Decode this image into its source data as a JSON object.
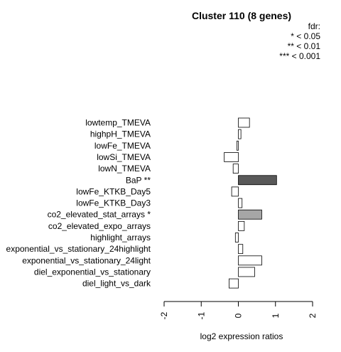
{
  "chart_data": {
    "type": "bar",
    "orientation": "horizontal",
    "title": "Cluster 110 (8 genes)",
    "xlabel": "log2 expression ratios",
    "ylabel": "",
    "xlim": [
      -2,
      2
    ],
    "xticks": [
      "-2",
      "-1",
      "0",
      "1",
      "2"
    ],
    "legend": {
      "title": "fdr:",
      "entries": [
        "* < 0.05",
        "** < 0.01",
        "*** < 0.001"
      ],
      "placement": "top-right"
    },
    "categories": [
      "lowtemp_TMEVA",
      "highpH_TMEVA",
      "lowFe_TMEVA",
      "lowSi_TMEVA",
      "lowN_TMEVA",
      "BaP **",
      "lowFe_KTKB_Day5",
      "lowFe_KTKB_Day3",
      "co2_elevated_stat_arrays *",
      "co2_elevated_expo_arrays",
      "highlight_arrays",
      "exponential_vs_stationary_24highlight",
      "exponential_vs_stationary_24light",
      "diel_exponential_vs_stationary",
      "diel_light_vs_dark"
    ],
    "values": [
      0.3,
      0.07,
      -0.04,
      -0.38,
      -0.14,
      1.03,
      -0.18,
      0.1,
      0.63,
      0.16,
      -0.08,
      0.12,
      0.63,
      0.44,
      -0.25
    ],
    "significance": [
      "",
      "",
      "",
      "",
      "",
      "**",
      "",
      "",
      "*",
      "",
      "",
      "",
      "",
      "",
      ""
    ],
    "colors": {
      "none": "#ffffff",
      "*": "#a6a6a6",
      "**": "#595959",
      "***": "#262626",
      "stroke": "#000000"
    }
  }
}
